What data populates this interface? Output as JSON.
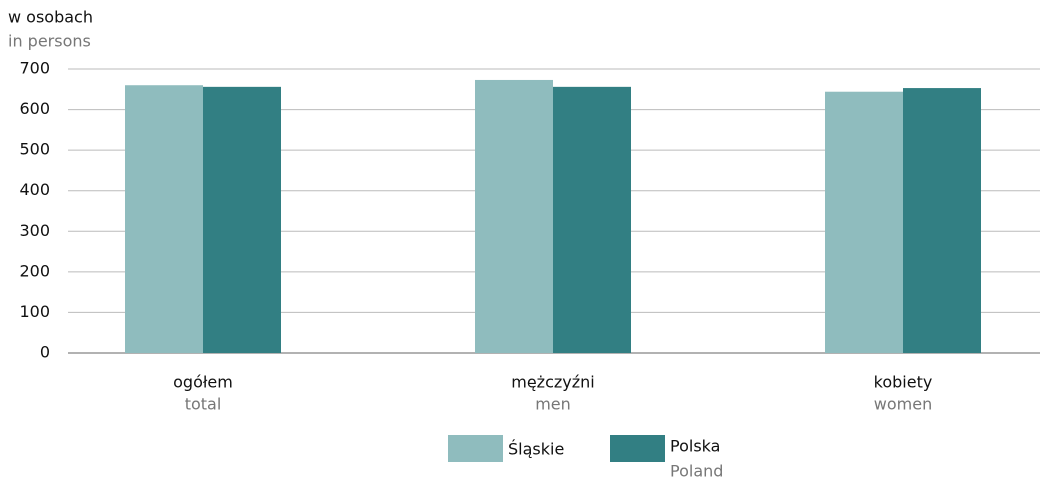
{
  "chart_data": {
    "type": "bar",
    "y_label": "w osobach",
    "y_label_en": "in persons",
    "categories": [
      "ogółem",
      "mężczyźni",
      "kobiety"
    ],
    "categories_en": [
      "total",
      "men",
      "women"
    ],
    "series": [
      {
        "name": "Śląskie",
        "color": "#8fbcbe",
        "values": [
          660,
          673,
          644
        ]
      },
      {
        "name": "Polska",
        "name_en": "Poland",
        "color": "#327f83",
        "values": [
          656,
          656,
          653
        ]
      }
    ],
    "ylim": [
      0,
      700
    ],
    "yticks": [
      0,
      100,
      200,
      300,
      400,
      500,
      600,
      700
    ],
    "grid": true
  }
}
